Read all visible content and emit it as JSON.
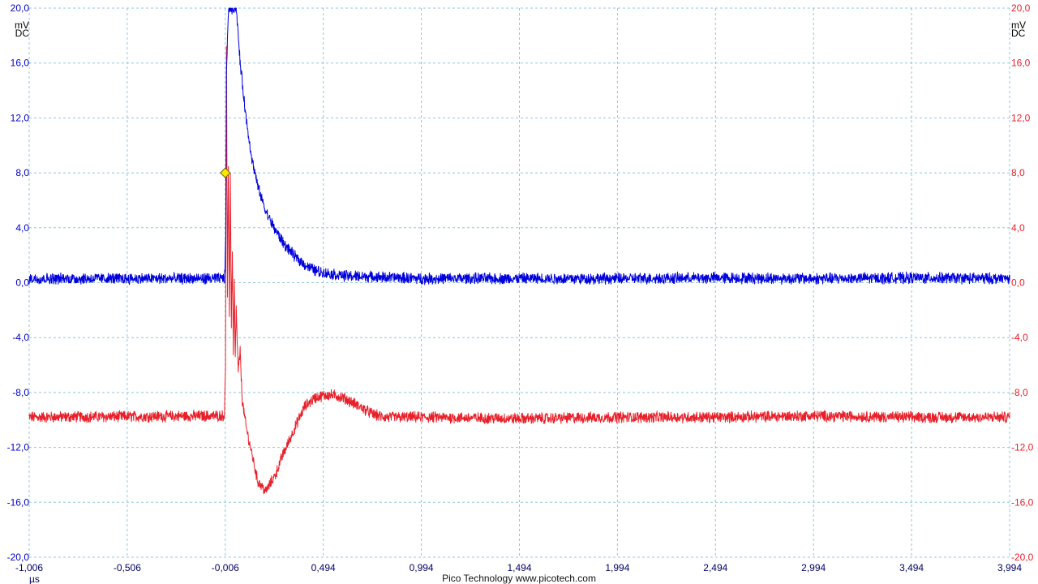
{
  "chart_data": {
    "type": "line",
    "xlim": [
      -1.006,
      3.994
    ],
    "ylim": [
      -20.0,
      20.0
    ],
    "grid": true,
    "x_ticks": [
      "-1,006",
      "-0,506",
      "-0,006",
      "0,494",
      "0,994",
      "1,494",
      "1,994",
      "2,494",
      "2,994",
      "3,494",
      "3,994"
    ],
    "x_tick_values": [
      -1.006,
      -0.506,
      -0.006,
      0.494,
      0.994,
      1.494,
      1.994,
      2.494,
      2.994,
      3.494,
      3.994
    ],
    "y_ticks": [
      "20,0",
      "16,0",
      "12,0",
      "8,0",
      "4,0",
      "0,0",
      "-4,0",
      "-8,0",
      "-12,0",
      "-16,0",
      "-20,0"
    ],
    "y_tick_values": [
      20,
      16,
      12,
      8,
      4,
      0,
      -4,
      -8,
      -12,
      -16,
      -20
    ],
    "x_unit": "µs",
    "left_axis": {
      "unit": "mV",
      "coupling": "DC",
      "color": "#0000cc"
    },
    "right_axis": {
      "unit": "mV",
      "coupling": "DC",
      "color": "#e8202a"
    },
    "grid_color": "#8ec8d8",
    "series": [
      {
        "color": "#0000dd",
        "noise": 0.35,
        "x": [
          -1.006,
          -0.02,
          -0.012,
          -0.008,
          -0.004,
          0.0,
          0.01,
          0.02,
          0.03,
          0.05,
          0.07,
          0.1,
          0.13,
          0.16,
          0.2,
          0.25,
          0.3,
          0.35,
          0.4,
          0.45,
          0.5,
          0.6,
          0.7,
          0.8,
          0.9,
          1.0,
          1.5,
          2.0,
          2.5,
          3.0,
          3.5,
          3.994
        ],
        "y": [
          0.3,
          0.3,
          0.3,
          0.6,
          3.5,
          15.0,
          20.0,
          20.0,
          20.0,
          20.0,
          16.0,
          12.0,
          9.0,
          7.0,
          5.2,
          3.8,
          2.7,
          1.9,
          1.3,
          0.9,
          0.7,
          0.5,
          0.45,
          0.4,
          0.35,
          0.3,
          0.3,
          0.3,
          0.35,
          0.3,
          0.35,
          0.3
        ]
      },
      {
        "color": "#e8202a",
        "noise": 0.35,
        "x": [
          -1.006,
          -0.02,
          -0.01,
          -0.005,
          0.0,
          0.005,
          0.01,
          0.015,
          0.02,
          0.025,
          0.03,
          0.035,
          0.04,
          0.045,
          0.05,
          0.06,
          0.07,
          0.08,
          0.1,
          0.13,
          0.16,
          0.2,
          0.25,
          0.28,
          0.32,
          0.36,
          0.4,
          0.45,
          0.5,
          0.55,
          0.6,
          0.65,
          0.7,
          0.75,
          0.8,
          0.9,
          1.0,
          1.5,
          2.0,
          2.5,
          3.0,
          3.5,
          3.994
        ],
        "y": [
          -9.8,
          -9.7,
          -9.6,
          -6.0,
          17.0,
          -1.0,
          8.5,
          -2.5,
          8.0,
          -3.0,
          2.0,
          -5.0,
          0.0,
          -5.5,
          -2.0,
          -6.5,
          -5.0,
          -8.5,
          -10.5,
          -12.5,
          -14.5,
          -15.2,
          -14.0,
          -12.8,
          -11.5,
          -10.2,
          -9.0,
          -8.4,
          -8.2,
          -8.2,
          -8.4,
          -8.8,
          -9.2,
          -9.6,
          -9.8,
          -9.8,
          -9.8,
          -9.9,
          -9.8,
          -9.8,
          -9.7,
          -9.8,
          -9.8
        ]
      }
    ],
    "trigger": {
      "x": -0.006,
      "y": 8.0,
      "marker_color": "#ffe600"
    }
  },
  "footer": {
    "brand": "Pico Technology   www.picotech.com"
  }
}
